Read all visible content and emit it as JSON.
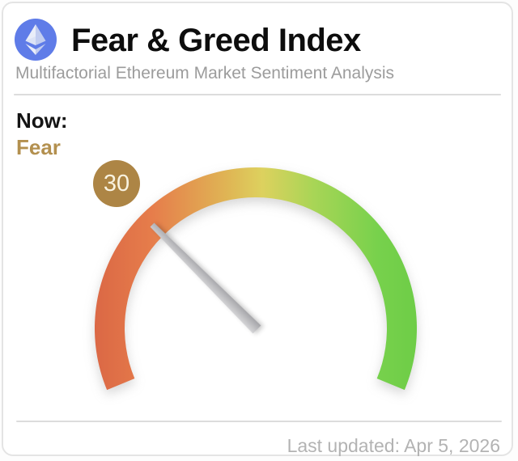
{
  "header": {
    "title": "Fear & Greed Index",
    "subtitle": "Multifactorial Ethereum Market Sentiment Analysis",
    "logo": "ethereum-icon"
  },
  "now": {
    "label": "Now:",
    "sentiment": "Fear",
    "value": "30"
  },
  "footer": {
    "last_updated": "Last updated: Apr 5, 2026"
  },
  "colors": {
    "sentiment_text": "#b3904f",
    "badge_bg": "#ad8545",
    "badge_text": "#f8f2e0",
    "subtitle_text": "#9c9c9c",
    "divider": "#dcdcdc",
    "logo_blue": "#5f7ce8",
    "needle_light": "#d6d6d8",
    "needle_dark": "#a4a4a8"
  },
  "chart_data": {
    "type": "gauge",
    "title": "Fear & Greed Index",
    "subtitle": "Multifactorial Ethereum Market Sentiment Analysis",
    "value": 30,
    "min": 0,
    "max": 100,
    "label": "Fear",
    "last_updated": "Apr 5, 2026",
    "arc_sweep_degrees": 225,
    "start_angle_degrees": 202.5,
    "color_scale": [
      {
        "stop": 0.0,
        "color": "#db6845"
      },
      {
        "stop": 0.18,
        "color": "#e67d4b"
      },
      {
        "stop": 0.42,
        "color": "#dfb755"
      },
      {
        "stop": 0.52,
        "color": "#ddd15e"
      },
      {
        "stop": 0.68,
        "color": "#a8d556"
      },
      {
        "stop": 0.88,
        "color": "#77d14c"
      },
      {
        "stop": 1.0,
        "color": "#6ecd47"
      }
    ]
  }
}
